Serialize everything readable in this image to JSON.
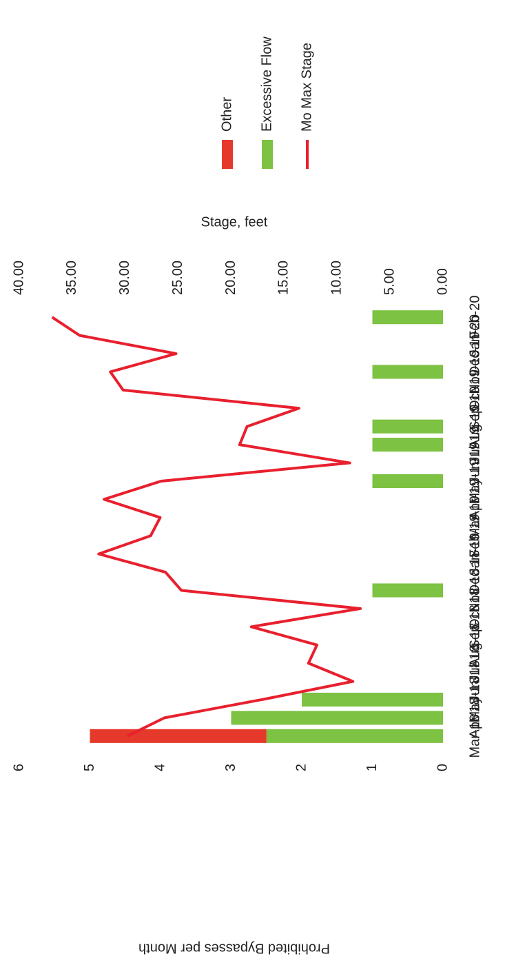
{
  "chart_data": {
    "type": "bar",
    "y_label": "Prohibited Bypasses per Month",
    "y2_label": "Stage, feet",
    "categories": [
      "Mar-18",
      "Apr-18",
      "May-18",
      "Jun-18",
      "Jul-18",
      "Aug-18",
      "Sep-18",
      "Oct-18",
      "Nov-18",
      "Dec-18",
      "Jan-19",
      "Feb-19",
      "Mar-19",
      "Apr-19",
      "May-19",
      "Jun-19",
      "Jul-19",
      "Aug-19",
      "Sep-19",
      "Oct-19",
      "Nov-19",
      "Dec-19",
      "Jan-20",
      "Feb-20"
    ],
    "series": [
      {
        "name": "Other",
        "type": "bar",
        "stacked": true,
        "color": "#e5392b",
        "values": [
          2.5,
          0,
          0,
          0,
          0,
          0,
          0,
          0,
          0,
          0,
          0,
          0,
          0,
          0,
          0,
          0,
          0,
          0,
          0,
          0,
          0,
          0,
          0,
          0
        ]
      },
      {
        "name": "Excessive Flow",
        "type": "bar",
        "stacked": true,
        "color": "#7dc243",
        "values": [
          2.5,
          3,
          2,
          0,
          0,
          0,
          0,
          0,
          1,
          0,
          0,
          0,
          0,
          0,
          1,
          0,
          1,
          1,
          0,
          0,
          1,
          0,
          0,
          1
        ]
      },
      {
        "name": "Mo Max Stage",
        "type": "line",
        "axis": "y2",
        "color": "#e8202e",
        "values": [
          29.8,
          26.3,
          17.1,
          8.5,
          12.7,
          11.9,
          18.1,
          7.8,
          24.7,
          26.2,
          32.5,
          27.6,
          26.7,
          32.0,
          26.6,
          8.8,
          19.2,
          18.5,
          13.6,
          30.2,
          31.4,
          25.2,
          34.3,
          36.9
        ]
      }
    ],
    "ylim": [
      0,
      6
    ],
    "yticks": [
      0,
      1,
      2,
      3,
      4,
      5,
      6
    ],
    "y2lim": [
      0,
      40
    ],
    "y2ticks": [
      {
        "value": 0,
        "label": "0.00"
      },
      {
        "value": 5,
        "label": "5.00"
      },
      {
        "value": 10,
        "label": "10.00"
      },
      {
        "value": 15,
        "label": "15.00"
      },
      {
        "value": 20,
        "label": "20.00"
      },
      {
        "value": 25,
        "label": "25.00"
      },
      {
        "value": 30,
        "label": "30.00"
      },
      {
        "value": 35,
        "label": "35.00"
      },
      {
        "value": 40,
        "label": "40.00"
      }
    ],
    "legend": "right",
    "grid": false
  }
}
